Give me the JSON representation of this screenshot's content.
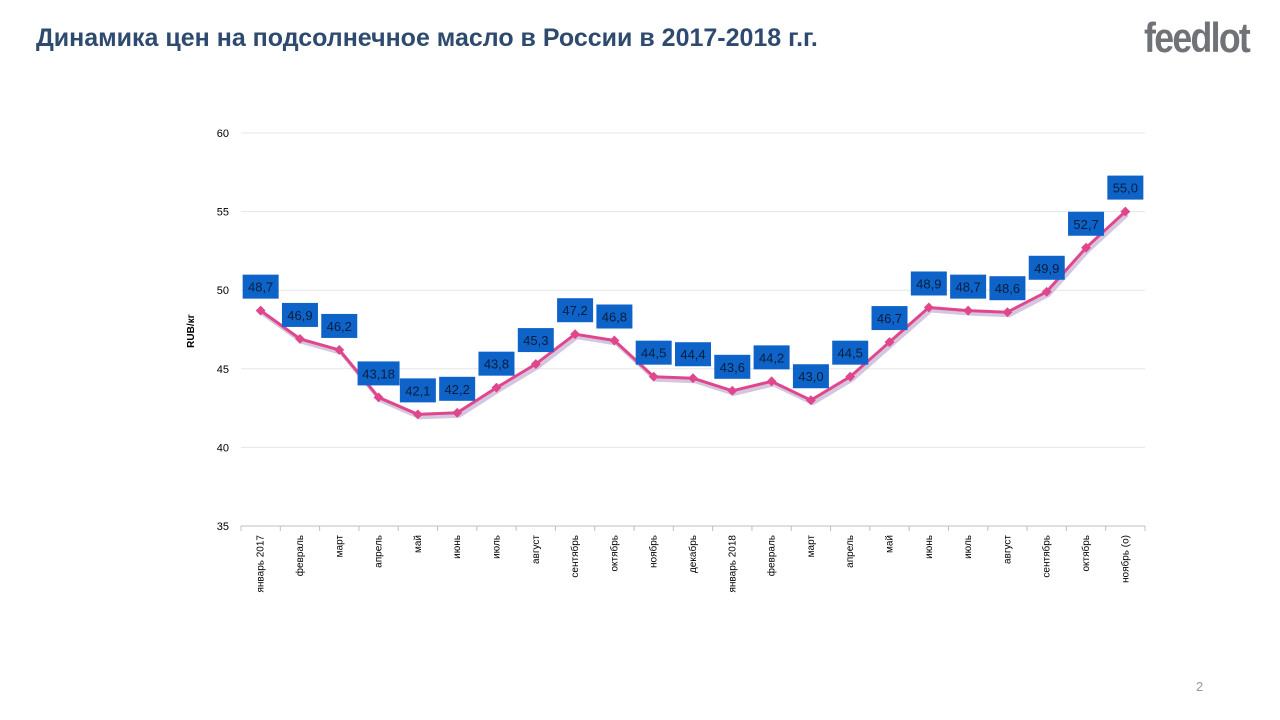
{
  "slide": {
    "title": "Динамика цен на подсолнечное масло в России в 2017-2018 г.г.",
    "logo": "feedlot",
    "page_number": "2"
  },
  "colors": {
    "title": "#2e4a6e",
    "line": "#e0468c",
    "line_shadow": "#c9b8d6",
    "label_box": "#0d63c7",
    "label_text": "#0a1e3c",
    "grid": "#e6e6e6",
    "logo": "#6f7277"
  },
  "chart_data": {
    "type": "line",
    "ylabel": "RUB/кг",
    "ylim": [
      35,
      60
    ],
    "yticks": [
      35,
      40,
      45,
      50,
      55,
      60
    ],
    "grid": true,
    "legend": "none",
    "categories": [
      "январь 2017",
      "февраль",
      "март",
      "апрель",
      "май",
      "июнь",
      "июль",
      "август",
      "сентябрь",
      "октябрь",
      "ноябрь",
      "декабрь",
      "январь 2018",
      "февраль",
      "март",
      "апрель",
      "май",
      "июнь",
      "июль",
      "август",
      "сентябрь",
      "октябрь",
      "ноябрь (о)"
    ],
    "values": [
      48.7,
      46.9,
      46.2,
      43.18,
      42.1,
      42.2,
      43.8,
      45.3,
      47.2,
      46.8,
      44.5,
      44.4,
      43.6,
      44.2,
      43.0,
      44.5,
      46.7,
      48.9,
      48.7,
      48.6,
      49.9,
      52.7,
      55.0
    ],
    "data_labels": [
      "48,7",
      "46,9",
      "46,2",
      "43,18",
      "42,1",
      "42,2",
      "43,8",
      "45,3",
      "47,2",
      "46,8",
      "44,5",
      "44,4",
      "43,6",
      "44,2",
      "43,0",
      "44,5",
      "46,7",
      "48,9",
      "48,7",
      "48,6",
      "49,9",
      "52,7",
      "55,0"
    ]
  }
}
